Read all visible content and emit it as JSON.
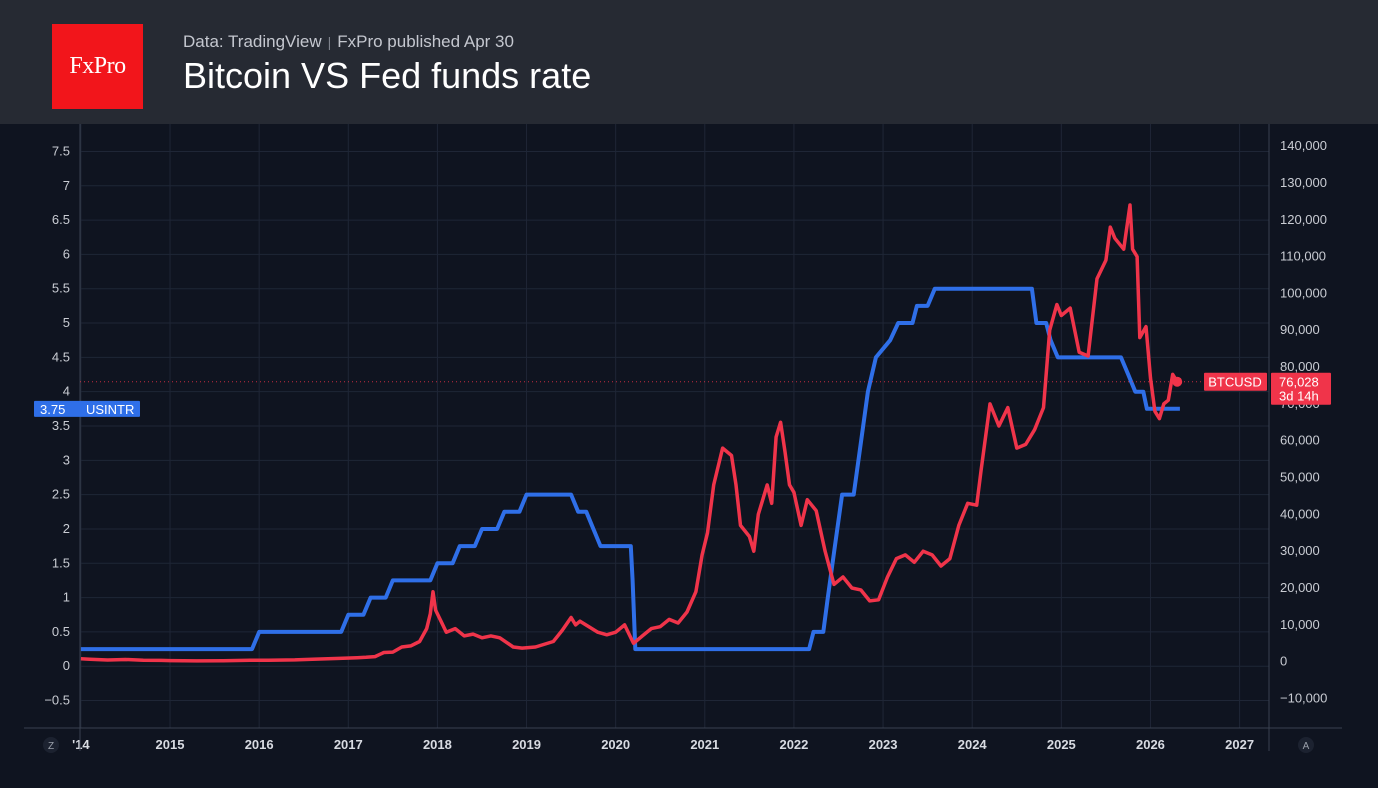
{
  "header": {
    "logo_text": "FxPro",
    "source": "Data: TradingView",
    "separator": "|",
    "published": "FxPro published Apr 30",
    "title": "Bitcoin VS Fed funds rate"
  },
  "corner_labels": {
    "left": "Z",
    "right": "A"
  },
  "colors": {
    "usintr": "#2f6fe8",
    "btcusd": "#f0344a",
    "grid": "#1f2636",
    "axis": "#3a4150"
  },
  "chart_data": {
    "type": "line",
    "title": "Bitcoin VS Fed funds rate",
    "x_range": [
      2013.99,
      2027.33
    ],
    "x_ticks": [
      "2014",
      "2015",
      "2016",
      "2017",
      "2018",
      "2019",
      "2020",
      "2021",
      "2022",
      "2023",
      "2024",
      "2025",
      "2026",
      "2027"
    ],
    "x_tick_labels": [
      "'14",
      "2015",
      "2016",
      "2017",
      "2018",
      "2019",
      "2020",
      "2021",
      "2022",
      "2023",
      "2024",
      "2025",
      "2026",
      "2027"
    ],
    "left_axis": {
      "range": [
        -0.9,
        7.9
      ],
      "ticks": [
        -0.5,
        0,
        0.5,
        1,
        1.5,
        2,
        2.5,
        3,
        3.5,
        4,
        4.5,
        5,
        5.5,
        6,
        6.5,
        7,
        7.5
      ],
      "tick_labels": [
        "−0.5",
        "0",
        "0.5",
        "1",
        "1.5",
        "2",
        "2.5",
        "3",
        "3.5",
        "4",
        "4.5",
        "5",
        "5.5",
        "6",
        "6.5",
        "7",
        "7.5"
      ]
    },
    "right_axis": {
      "range": [
        -18000,
        146000
      ],
      "ticks": [
        -10000,
        0,
        10000,
        20000,
        30000,
        40000,
        50000,
        60000,
        70000,
        80000,
        90000,
        100000,
        110000,
        120000,
        130000,
        140000
      ],
      "tick_labels": [
        "−10,000",
        "0",
        "10,000",
        "20,000",
        "30,000",
        "40,000",
        "50,000",
        "60,000",
        "70,000",
        "80,000",
        "90,000",
        "100,000",
        "110,000",
        "120,000",
        "130,000",
        "140,000"
      ]
    },
    "series": [
      {
        "name": "USINTR",
        "axis": "left",
        "last_value_label": "3.75",
        "points": [
          [
            2014.0,
            0.25
          ],
          [
            2015.92,
            0.25
          ],
          [
            2016.0,
            0.5
          ],
          [
            2016.92,
            0.5
          ],
          [
            2017.0,
            0.75
          ],
          [
            2017.17,
            0.75
          ],
          [
            2017.25,
            1.0
          ],
          [
            2017.42,
            1.0
          ],
          [
            2017.5,
            1.25
          ],
          [
            2017.92,
            1.25
          ],
          [
            2018.0,
            1.5
          ],
          [
            2018.17,
            1.5
          ],
          [
            2018.25,
            1.75
          ],
          [
            2018.42,
            1.75
          ],
          [
            2018.5,
            2.0
          ],
          [
            2018.67,
            2.0
          ],
          [
            2018.75,
            2.25
          ],
          [
            2018.92,
            2.25
          ],
          [
            2019.0,
            2.5
          ],
          [
            2019.5,
            2.5
          ],
          [
            2019.58,
            2.25
          ],
          [
            2019.67,
            2.25
          ],
          [
            2019.75,
            2.0
          ],
          [
            2019.83,
            1.75
          ],
          [
            2020.17,
            1.75
          ],
          [
            2020.19,
            1.25
          ],
          [
            2020.22,
            0.25
          ],
          [
            2022.17,
            0.25
          ],
          [
            2022.22,
            0.5
          ],
          [
            2022.33,
            0.5
          ],
          [
            2022.38,
            1.0
          ],
          [
            2022.46,
            1.75
          ],
          [
            2022.54,
            2.5
          ],
          [
            2022.67,
            2.5
          ],
          [
            2022.75,
            3.25
          ],
          [
            2022.83,
            4.0
          ],
          [
            2022.92,
            4.5
          ],
          [
            2023.08,
            4.75
          ],
          [
            2023.17,
            5.0
          ],
          [
            2023.33,
            5.0
          ],
          [
            2023.38,
            5.25
          ],
          [
            2023.5,
            5.25
          ],
          [
            2023.58,
            5.5
          ],
          [
            2024.67,
            5.5
          ],
          [
            2024.72,
            5.0
          ],
          [
            2024.83,
            5.0
          ],
          [
            2024.88,
            4.75
          ],
          [
            2024.96,
            4.5
          ],
          [
            2025.67,
            4.5
          ],
          [
            2025.75,
            4.25
          ],
          [
            2025.83,
            4.0
          ],
          [
            2025.92,
            4.0
          ],
          [
            2025.96,
            3.75
          ],
          [
            2026.33,
            3.75
          ]
        ]
      },
      {
        "name": "BTCUSD",
        "axis": "right",
        "last_value_label": "76,028",
        "countdown_label": "3d 14h",
        "points": [
          [
            2014.0,
            800
          ],
          [
            2014.1,
            650
          ],
          [
            2014.3,
            450
          ],
          [
            2014.5,
            600
          ],
          [
            2014.7,
            400
          ],
          [
            2014.9,
            350
          ],
          [
            2015.0,
            300
          ],
          [
            2015.3,
            230
          ],
          [
            2015.6,
            280
          ],
          [
            2015.9,
            380
          ],
          [
            2016.1,
            420
          ],
          [
            2016.4,
            500
          ],
          [
            2016.6,
            650
          ],
          [
            2016.9,
            900
          ],
          [
            2017.1,
            1100
          ],
          [
            2017.2,
            1200
          ],
          [
            2017.3,
            1400
          ],
          [
            2017.4,
            2500
          ],
          [
            2017.5,
            2600
          ],
          [
            2017.6,
            4000
          ],
          [
            2017.7,
            4300
          ],
          [
            2017.8,
            5500
          ],
          [
            2017.88,
            9000
          ],
          [
            2017.92,
            13000
          ],
          [
            2017.95,
            19000
          ],
          [
            2017.98,
            14000
          ],
          [
            2018.04,
            11000
          ],
          [
            2018.1,
            8000
          ],
          [
            2018.2,
            9000
          ],
          [
            2018.3,
            7000
          ],
          [
            2018.4,
            7500
          ],
          [
            2018.5,
            6500
          ],
          [
            2018.6,
            7000
          ],
          [
            2018.7,
            6500
          ],
          [
            2018.85,
            4000
          ],
          [
            2018.95,
            3700
          ],
          [
            2019.1,
            4000
          ],
          [
            2019.3,
            5500
          ],
          [
            2019.4,
            8500
          ],
          [
            2019.5,
            12000
          ],
          [
            2019.55,
            10000
          ],
          [
            2019.6,
            11000
          ],
          [
            2019.7,
            9500
          ],
          [
            2019.8,
            8000
          ],
          [
            2019.9,
            7300
          ],
          [
            2020.0,
            8000
          ],
          [
            2020.1,
            10000
          ],
          [
            2020.2,
            5000
          ],
          [
            2020.3,
            7000
          ],
          [
            2020.4,
            9000
          ],
          [
            2020.5,
            9500
          ],
          [
            2020.6,
            11500
          ],
          [
            2020.7,
            10500
          ],
          [
            2020.8,
            13500
          ],
          [
            2020.9,
            19000
          ],
          [
            2020.97,
            29000
          ],
          [
            2021.03,
            35000
          ],
          [
            2021.1,
            48000
          ],
          [
            2021.2,
            58000
          ],
          [
            2021.3,
            56000
          ],
          [
            2021.35,
            48000
          ],
          [
            2021.4,
            37000
          ],
          [
            2021.5,
            34000
          ],
          [
            2021.55,
            30000
          ],
          [
            2021.6,
            40000
          ],
          [
            2021.7,
            48000
          ],
          [
            2021.75,
            43000
          ],
          [
            2021.8,
            61000
          ],
          [
            2021.85,
            65000
          ],
          [
            2021.9,
            57000
          ],
          [
            2021.95,
            48000
          ],
          [
            2022.0,
            46000
          ],
          [
            2022.08,
            37000
          ],
          [
            2022.15,
            44000
          ],
          [
            2022.25,
            41000
          ],
          [
            2022.35,
            30000
          ],
          [
            2022.45,
            21000
          ],
          [
            2022.55,
            23000
          ],
          [
            2022.65,
            20000
          ],
          [
            2022.75,
            19500
          ],
          [
            2022.85,
            16500
          ],
          [
            2022.95,
            16800
          ],
          [
            2023.05,
            23000
          ],
          [
            2023.15,
            28000
          ],
          [
            2023.25,
            29000
          ],
          [
            2023.35,
            27000
          ],
          [
            2023.45,
            30000
          ],
          [
            2023.55,
            29000
          ],
          [
            2023.65,
            26000
          ],
          [
            2023.75,
            28000
          ],
          [
            2023.85,
            37000
          ],
          [
            2023.95,
            43000
          ],
          [
            2024.05,
            42500
          ],
          [
            2024.1,
            52000
          ],
          [
            2024.2,
            70000
          ],
          [
            2024.3,
            64000
          ],
          [
            2024.4,
            69000
          ],
          [
            2024.5,
            58000
          ],
          [
            2024.6,
            59000
          ],
          [
            2024.7,
            63000
          ],
          [
            2024.8,
            69000
          ],
          [
            2024.87,
            90000
          ],
          [
            2024.95,
            97000
          ],
          [
            2025.0,
            94000
          ],
          [
            2025.1,
            96000
          ],
          [
            2025.2,
            84000
          ],
          [
            2025.3,
            83000
          ],
          [
            2025.4,
            104000
          ],
          [
            2025.5,
            109000
          ],
          [
            2025.55,
            118000
          ],
          [
            2025.6,
            115000
          ],
          [
            2025.7,
            112000
          ],
          [
            2025.77,
            124000
          ],
          [
            2025.8,
            112000
          ],
          [
            2025.85,
            110000
          ],
          [
            2025.88,
            88000
          ],
          [
            2025.95,
            91000
          ],
          [
            2026.0,
            77000
          ],
          [
            2026.05,
            68000
          ],
          [
            2026.1,
            66000
          ],
          [
            2026.15,
            70000
          ],
          [
            2026.2,
            71000
          ],
          [
            2026.25,
            78000
          ],
          [
            2026.3,
            76028
          ]
        ]
      }
    ]
  }
}
